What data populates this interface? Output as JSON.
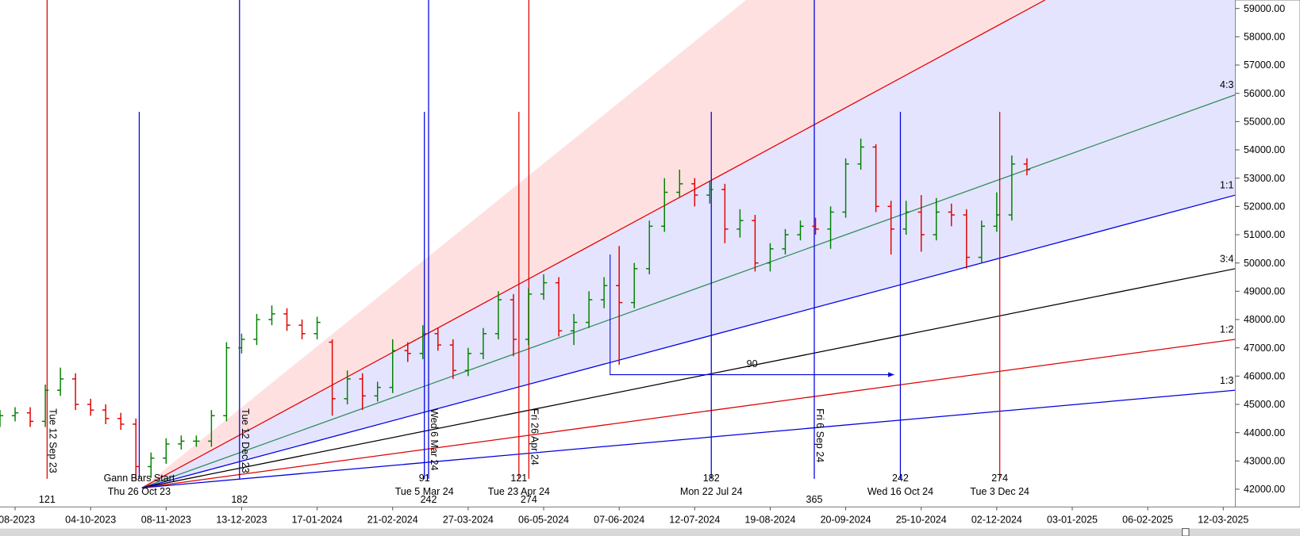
{
  "chart_data": {
    "type": "ohlc",
    "xlim": [
      0,
      409
    ],
    "ylim": [
      41400,
      59300
    ],
    "xticks": [
      {
        "value": 5,
        "label": "-08-2023"
      },
      {
        "value": 30,
        "label": "04-10-2023"
      },
      {
        "value": 55,
        "label": "08-11-2023"
      },
      {
        "value": 80,
        "label": "13-12-2023"
      },
      {
        "value": 105,
        "label": "17-01-2024"
      },
      {
        "value": 130,
        "label": "21-02-2024"
      },
      {
        "value": 155,
        "label": "27-03-2024"
      },
      {
        "value": 180,
        "label": "06-05-2024"
      },
      {
        "value": 205,
        "label": "07-06-2024"
      },
      {
        "value": 230,
        "label": "12-07-2024"
      },
      {
        "value": 255,
        "label": "19-08-2024"
      },
      {
        "value": 280,
        "label": "20-09-2024"
      },
      {
        "value": 305,
        "label": "25-10-2024"
      },
      {
        "value": 330,
        "label": "02-12-2024"
      },
      {
        "value": 355,
        "label": "03-01-2025"
      },
      {
        "value": 380,
        "label": "06-02-2025"
      },
      {
        "value": 405,
        "label": "12-03-2025"
      }
    ],
    "yticks": [
      {
        "value": 42000,
        "label": "42000.00"
      },
      {
        "value": 43000,
        "label": "43000.00"
      },
      {
        "value": 44000,
        "label": "44000.00"
      },
      {
        "value": 45000,
        "label": "45000.00"
      },
      {
        "value": 46000,
        "label": "46000.00"
      },
      {
        "value": 47000,
        "label": "47000.00"
      },
      {
        "value": 48000,
        "label": "48000.00"
      },
      {
        "value": 49000,
        "label": "49000.00"
      },
      {
        "value": 50000,
        "label": "50000.00"
      },
      {
        "value": 51000,
        "label": "51000.00"
      },
      {
        "value": 52000,
        "label": "52000.00"
      },
      {
        "value": 53000,
        "label": "53000.00"
      },
      {
        "value": 54000,
        "label": "54000.00"
      },
      {
        "value": 55000,
        "label": "55000.00"
      },
      {
        "value": 56000,
        "label": "56000.00"
      },
      {
        "value": 57000,
        "label": "57000.00"
      },
      {
        "value": 58000,
        "label": "58000.00"
      },
      {
        "value": 59000,
        "label": "59000.00"
      }
    ],
    "up_color": "#008000",
    "down_color": "#e00000",
    "x": [
      0,
      5,
      10,
      15,
      20,
      25,
      30,
      35,
      40,
      45,
      50,
      55,
      60,
      65,
      70,
      75,
      80,
      85,
      90,
      95,
      100,
      105,
      110,
      115,
      120,
      125,
      130,
      135,
      140,
      145,
      150,
      155,
      160,
      165,
      170,
      175,
      180,
      185,
      190,
      195,
      200,
      205,
      210,
      215,
      220,
      225,
      230,
      235,
      240,
      245,
      250,
      255,
      260,
      265,
      270,
      275,
      280,
      285,
      290,
      295,
      300,
      305,
      310,
      315,
      320,
      325,
      330,
      335,
      340
    ],
    "open": [
      44400,
      44600,
      44700,
      44400,
      45500,
      45900,
      45000,
      44800,
      44500,
      44300,
      42800,
      43100,
      43600,
      43700,
      43700,
      44600,
      47000,
      47300,
      48000,
      48200,
      47800,
      47500,
      47200,
      45200,
      45900,
      45300,
      45600,
      46900,
      46800,
      47500,
      47100,
      46200,
      46800,
      47500,
      48700,
      47300,
      48900,
      49300,
      47600,
      47900,
      48700,
      49200,
      48600,
      49800,
      51300,
      52500,
      52800,
      52400,
      52600,
      51200,
      51500,
      50000,
      50500,
      51000,
      51300,
      51200,
      51800,
      53500,
      54100,
      52000,
      51200,
      51800,
      51000,
      51800,
      51700,
      50200,
      51300,
      51700,
      53500
    ],
    "high": [
      44800,
      44900,
      44900,
      45700,
      46300,
      46100,
      45200,
      45000,
      44700,
      44500,
      43300,
      43800,
      43900,
      43900,
      44800,
      47200,
      47500,
      48200,
      48500,
      48400,
      48000,
      48100,
      47300,
      46200,
      46100,
      45800,
      47300,
      47200,
      47800,
      47700,
      47300,
      47000,
      47700,
      49000,
      48900,
      49100,
      49600,
      49500,
      48200,
      49000,
      49500,
      50600,
      50000,
      51500,
      53000,
      53300,
      53000,
      52900,
      52800,
      51900,
      51700,
      50700,
      51200,
      51500,
      51600,
      52000,
      53700,
      54400,
      54200,
      52200,
      52200,
      52400,
      52300,
      52100,
      51900,
      51500,
      52500,
      53800,
      53700
    ],
    "low": [
      44200,
      44400,
      44200,
      44200,
      45300,
      44800,
      44600,
      44300,
      44100,
      42300,
      42400,
      42900,
      43400,
      43500,
      43500,
      44400,
      46800,
      47100,
      47800,
      47600,
      47300,
      47300,
      44600,
      45000,
      44800,
      45100,
      45400,
      46500,
      46600,
      46900,
      45900,
      46000,
      46600,
      47300,
      46700,
      47100,
      48700,
      47400,
      47100,
      47700,
      48400,
      46400,
      48400,
      49600,
      51100,
      52300,
      52000,
      52100,
      50700,
      50900,
      49700,
      49700,
      50300,
      50800,
      51000,
      50500,
      51600,
      53300,
      51800,
      50300,
      51000,
      50400,
      50800,
      51300,
      49800,
      50000,
      51100,
      51500,
      53100
    ],
    "close": [
      44600,
      44700,
      44400,
      45500,
      45900,
      45000,
      44800,
      44500,
      44300,
      42800,
      43100,
      43600,
      43700,
      43700,
      44600,
      47000,
      47300,
      48000,
      48200,
      47800,
      47500,
      47900,
      45200,
      45900,
      45300,
      45600,
      46900,
      46800,
      47500,
      47100,
      46200,
      46800,
      47500,
      48700,
      47300,
      48900,
      49300,
      47600,
      47900,
      48700,
      49200,
      48600,
      49800,
      51300,
      52500,
      52800,
      52400,
      52600,
      51200,
      51500,
      50000,
      50500,
      51000,
      51300,
      51200,
      51800,
      53500,
      54100,
      52000,
      51200,
      51800,
      51000,
      51800,
      51700,
      50200,
      51300,
      51700,
      53500,
      53300
    ],
    "fan_lines": [
      {
        "color": "#ff4040",
        "x": [
          47,
          247
        ],
        "values": [
          42050,
          59300
        ]
      },
      {
        "color": "#e00000",
        "x": [
          47,
          346
        ],
        "values": [
          42050,
          59300
        ]
      },
      {
        "label": "4:3",
        "color": "#2e8b57",
        "x": [
          47,
          409
        ],
        "values": [
          42050,
          55950
        ]
      },
      {
        "label": "1:1",
        "color": "#0000e0",
        "x": [
          47,
          409
        ],
        "values": [
          42050,
          52400
        ]
      },
      {
        "label": "3:4",
        "color": "#000000",
        "x": [
          47,
          409
        ],
        "values": [
          42050,
          49800
        ]
      },
      {
        "label": "1:2",
        "color": "#e00000",
        "x": [
          47,
          409
        ],
        "values": [
          42050,
          47300
        ]
      },
      {
        "label": "1:3",
        "color": "#0000e0",
        "x": [
          47,
          409
        ],
        "values": [
          42050,
          45500
        ]
      }
    ],
    "markers": [
      {
        "x": 15.6,
        "color": "#e00000",
        "span": "full",
        "label": "Tue 12 Sep 23",
        "count": "121"
      },
      {
        "x": 79.3,
        "color": "#0000e0",
        "span": "full",
        "label": "Tue 12 Dec 23",
        "count": "182"
      },
      {
        "x": 141.9,
        "color": "#0000e0",
        "span": "full",
        "label": "Wed 6 Mar 24",
        "count": "242"
      },
      {
        "x": 175.1,
        "color": "#e00000",
        "span": "full",
        "label": "Fri 26 Apr 24",
        "count": "274"
      },
      {
        "x": 269.6,
        "color": "#0000e0",
        "span": "full",
        "label": "Fri 6 Sep 24",
        "count": "365"
      },
      {
        "x": 46.1,
        "color": "#0000e0",
        "span": "short",
        "count": "Gann Bars Start",
        "date": "Thu 26 Oct 23"
      },
      {
        "x": 140.5,
        "color": "#0000e0",
        "span": "short",
        "count": "91",
        "date": "Tue 5 Mar 24"
      },
      {
        "x": 171.8,
        "color": "#e00000",
        "span": "short",
        "count": "121",
        "date": "Tue 23 Apr 24"
      },
      {
        "x": 235.5,
        "color": "#0000e0",
        "span": "short",
        "count": "182",
        "date": "Mon 22 Jul 24"
      },
      {
        "x": 298.1,
        "color": "#0000e0",
        "span": "short",
        "count": "242",
        "date": "Wed 16 Oct 24"
      },
      {
        "x": 331,
        "color": "#e00000",
        "span": "short",
        "count": "274",
        "date": "Tue 3 Dec 24"
      }
    ],
    "measure": {
      "x": [
        202,
        296
      ],
      "y": [
        50300,
        46050
      ],
      "label": "90",
      "color": "#0000e0"
    }
  }
}
